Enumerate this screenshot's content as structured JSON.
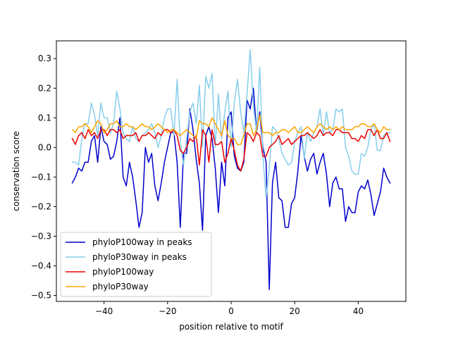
{
  "chart_data": {
    "type": "line",
    "title": "",
    "xlabel": "position relative to motif",
    "ylabel": "conservation score",
    "xlim": [
      -55,
      55
    ],
    "ylim": [
      -0.52,
      0.36
    ],
    "xticks": [
      -40,
      -20,
      0,
      20,
      40
    ],
    "yticks": [
      -0.5,
      -0.4,
      -0.3,
      -0.2,
      -0.1,
      0.0,
      0.1,
      0.2,
      0.3
    ],
    "ytick_labels": [
      "−0.5",
      "−0.4",
      "−0.3",
      "−0.2",
      "−0.1",
      "0.0",
      "0.1",
      "0.2",
      "0.3"
    ],
    "xtick_labels": [
      "−40",
      "−20",
      "0",
      "20",
      "40"
    ],
    "grid": false,
    "legend": "lower-left",
    "series": [
      {
        "name": "phyloP100way in peaks",
        "color": "#0000cc",
        "x": [
          -50,
          -49,
          -48,
          -47,
          -46,
          -45,
          -44,
          -43,
          -42,
          -41,
          -40,
          -39,
          -38,
          -37,
          -36,
          -35,
          -34,
          -33,
          -32,
          -31,
          -30,
          -29,
          -28,
          -27,
          -26,
          -25,
          -24,
          -23,
          -22,
          -21,
          -20,
          -19,
          -18,
          -17,
          -16,
          -15,
          -14,
          -13,
          -12,
          -11,
          -10,
          -9,
          -8,
          -7,
          -6,
          -5,
          -4,
          -3,
          -2,
          -1,
          0,
          1,
          2,
          3,
          4,
          5,
          6,
          7,
          8,
          9,
          10,
          11,
          12,
          13,
          14,
          15,
          16,
          17,
          18,
          19,
          20,
          21,
          22,
          23,
          24,
          25,
          26,
          27,
          28,
          29,
          30,
          31,
          32,
          33,
          34,
          35,
          36,
          37,
          38,
          39,
          40,
          41,
          42,
          43,
          44,
          45,
          46,
          47,
          48,
          49,
          50
        ],
        "y": [
          -0.12,
          -0.1,
          -0.07,
          -0.08,
          -0.05,
          -0.05,
          0.02,
          0.04,
          -0.05,
          0.07,
          0.02,
          0.01,
          -0.04,
          -0.03,
          0.02,
          0.1,
          -0.1,
          -0.13,
          -0.05,
          -0.1,
          -0.18,
          -0.27,
          -0.22,
          0.0,
          -0.05,
          -0.02,
          -0.13,
          -0.18,
          -0.12,
          -0.05,
          0.0,
          0.05,
          0.05,
          -0.05,
          -0.27,
          -0.02,
          -0.02,
          0.13,
          0.06,
          -0.04,
          -0.12,
          -0.28,
          0.04,
          0.07,
          0.03,
          -0.07,
          -0.22,
          -0.05,
          -0.13,
          0.1,
          0.12,
          -0.03,
          -0.07,
          -0.08,
          -0.05,
          0.16,
          0.13,
          0.2,
          0.05,
          0.12,
          0.0,
          -0.05,
          -0.48,
          -0.12,
          -0.05,
          -0.17,
          -0.18,
          -0.27,
          -0.27,
          -0.19,
          -0.17,
          -0.08,
          0.04,
          -0.03,
          -0.08,
          -0.04,
          -0.02,
          -0.09,
          -0.05,
          -0.02,
          -0.09,
          -0.2,
          -0.12,
          -0.1,
          -0.14,
          -0.14,
          -0.25,
          -0.2,
          -0.22,
          -0.22,
          -0.15,
          -0.13,
          -0.14,
          -0.11,
          -0.16,
          -0.23,
          -0.19,
          -0.15,
          -0.07,
          -0.1,
          -0.12
        ]
      },
      {
        "name": "phyloP30way in peaks",
        "color": "#87ceeb",
        "x": [
          -50,
          -49,
          -48,
          -47,
          -46,
          -45,
          -44,
          -43,
          -42,
          -41,
          -40,
          -39,
          -38,
          -37,
          -36,
          -35,
          -34,
          -33,
          -32,
          -31,
          -30,
          -29,
          -28,
          -27,
          -26,
          -25,
          -24,
          -23,
          -22,
          -21,
          -20,
          -19,
          -18,
          -17,
          -16,
          -15,
          -14,
          -13,
          -12,
          -11,
          -10,
          -9,
          -8,
          -7,
          -6,
          -5,
          -4,
          -3,
          -2,
          -1,
          0,
          1,
          2,
          3,
          4,
          5,
          6,
          7,
          8,
          9,
          10,
          11,
          12,
          13,
          14,
          15,
          16,
          17,
          18,
          19,
          20,
          21,
          22,
          23,
          24,
          25,
          26,
          27,
          28,
          29,
          30,
          31,
          32,
          33,
          34,
          35,
          36,
          37,
          38,
          39,
          40,
          41,
          42,
          43,
          44,
          45,
          46,
          47,
          48,
          49,
          50
        ],
        "y": [
          -0.05,
          -0.05,
          -0.06,
          0.03,
          0.08,
          0.08,
          0.15,
          0.11,
          0.04,
          0.15,
          0.1,
          0.1,
          0.05,
          0.08,
          0.19,
          0.13,
          0.05,
          0.03,
          0.02,
          0.07,
          0.03,
          0.02,
          0.04,
          0.05,
          0.06,
          0.08,
          0.05,
          0.0,
          0.04,
          0.1,
          0.13,
          0.13,
          0.04,
          0.23,
          0.02,
          -0.06,
          0.03,
          0.12,
          0.15,
          0.08,
          0.21,
          0.0,
          0.24,
          0.2,
          0.25,
          0.0,
          0.18,
          0.03,
          0.12,
          0.19,
          0.0,
          0.15,
          0.23,
          0.12,
          0.05,
          0.18,
          0.33,
          0.14,
          0.05,
          0.27,
          -0.03,
          -0.17,
          -0.07,
          0.07,
          0.06,
          0.03,
          -0.02,
          -0.04,
          -0.06,
          -0.05,
          0.02,
          0.05,
          0.07,
          -0.04,
          0.05,
          0.02,
          0.05,
          0.07,
          0.13,
          0.04,
          0.12,
          0.05,
          0.06,
          0.13,
          0.12,
          0.13,
          0.0,
          -0.03,
          -0.08,
          -0.09,
          -0.09,
          -0.02,
          -0.03,
          0.0,
          0.06,
          0.08,
          -0.01,
          -0.01,
          0.04,
          0.05,
          0.05
        ]
      },
      {
        "name": "phyloP100way",
        "color": "#ee0000",
        "x": [
          -50,
          -49,
          -48,
          -47,
          -46,
          -45,
          -44,
          -43,
          -42,
          -41,
          -40,
          -39,
          -38,
          -37,
          -36,
          -35,
          -34,
          -33,
          -32,
          -31,
          -30,
          -29,
          -28,
          -27,
          -26,
          -25,
          -24,
          -23,
          -22,
          -21,
          -20,
          -19,
          -18,
          -17,
          -16,
          -15,
          -14,
          -13,
          -12,
          -11,
          -10,
          -9,
          -8,
          -7,
          -6,
          -5,
          -4,
          -3,
          -2,
          -1,
          0,
          1,
          2,
          3,
          4,
          5,
          6,
          7,
          8,
          9,
          10,
          11,
          12,
          13,
          14,
          15,
          16,
          17,
          18,
          19,
          20,
          21,
          22,
          23,
          24,
          25,
          26,
          27,
          28,
          29,
          30,
          31,
          32,
          33,
          34,
          35,
          36,
          37,
          38,
          39,
          40,
          41,
          42,
          43,
          44,
          45,
          46,
          47,
          48,
          49,
          50
        ],
        "y": [
          0.03,
          0.01,
          0.04,
          0.05,
          0.03,
          0.06,
          0.04,
          0.05,
          0.03,
          0.06,
          0.06,
          0.04,
          0.06,
          0.06,
          0.05,
          0.06,
          0.03,
          0.04,
          0.04,
          0.04,
          0.05,
          0.02,
          0.04,
          0.04,
          0.05,
          0.04,
          0.03,
          0.05,
          0.04,
          0.06,
          0.06,
          0.05,
          0.06,
          0.04,
          -0.01,
          -0.02,
          0.0,
          0.03,
          0.02,
          0.04,
          -0.06,
          0.06,
          0.04,
          -0.05,
          0.06,
          0.01,
          0.01,
          0.02,
          -0.05,
          -0.02,
          0.03,
          -0.01,
          -0.06,
          -0.08,
          -0.04,
          0.05,
          0.04,
          0.02,
          0.05,
          0.04,
          -0.03,
          -0.03,
          0.0,
          0.01,
          0.02,
          0.04,
          0.01,
          0.02,
          0.03,
          0.01,
          0.02,
          0.03,
          0.04,
          0.04,
          0.05,
          0.04,
          0.03,
          0.04,
          0.06,
          0.04,
          0.05,
          0.05,
          0.04,
          0.06,
          0.06,
          0.05,
          0.05,
          0.05,
          0.03,
          0.03,
          0.02,
          0.04,
          0.03,
          0.06,
          0.06,
          0.04,
          0.06,
          0.03,
          0.03,
          0.05,
          0.02
        ]
      },
      {
        "name": "phyloP30way",
        "color": "#ffa500",
        "x": [
          -50,
          -49,
          -48,
          -47,
          -46,
          -45,
          -44,
          -43,
          -42,
          -41,
          -40,
          -39,
          -38,
          -37,
          -36,
          -35,
          -34,
          -33,
          -32,
          -31,
          -30,
          -29,
          -28,
          -27,
          -26,
          -25,
          -24,
          -23,
          -22,
          -21,
          -20,
          -19,
          -18,
          -17,
          -16,
          -15,
          -14,
          -13,
          -12,
          -11,
          -10,
          -9,
          -8,
          -7,
          -6,
          -5,
          -4,
          -3,
          -2,
          -1,
          0,
          1,
          2,
          3,
          4,
          5,
          6,
          7,
          8,
          9,
          10,
          11,
          12,
          13,
          14,
          15,
          16,
          17,
          18,
          19,
          20,
          21,
          22,
          23,
          24,
          25,
          26,
          27,
          28,
          29,
          30,
          31,
          32,
          33,
          34,
          35,
          36,
          37,
          38,
          39,
          40,
          41,
          42,
          43,
          44,
          45,
          46,
          47,
          48,
          49,
          50
        ],
        "y": [
          0.06,
          0.05,
          0.07,
          0.07,
          0.08,
          0.07,
          0.05,
          0.07,
          0.09,
          0.08,
          0.05,
          0.06,
          0.08,
          0.08,
          0.09,
          0.07,
          0.07,
          0.08,
          0.07,
          0.07,
          0.06,
          0.07,
          0.08,
          0.07,
          0.07,
          0.06,
          0.07,
          0.08,
          0.07,
          0.06,
          0.05,
          0.06,
          0.06,
          0.05,
          0.04,
          0.05,
          0.06,
          0.05,
          0.04,
          0.03,
          0.09,
          0.08,
          0.08,
          0.07,
          0.1,
          0.08,
          0.06,
          0.04,
          0.09,
          0.04,
          0.03,
          0.03,
          0.01,
          0.01,
          0.04,
          0.08,
          0.08,
          0.04,
          0.06,
          0.11,
          0.05,
          0.05,
          0.05,
          0.04,
          0.05,
          0.05,
          0.06,
          0.06,
          0.05,
          0.06,
          0.07,
          0.05,
          0.05,
          0.06,
          0.07,
          0.06,
          0.05,
          0.07,
          0.08,
          0.07,
          0.06,
          0.07,
          0.06,
          0.07,
          0.06,
          0.07,
          0.06,
          0.06,
          0.06,
          0.07,
          0.07,
          0.08,
          0.08,
          0.07,
          0.07,
          0.08,
          0.06,
          0.05,
          0.07,
          0.06,
          0.06
        ]
      }
    ]
  }
}
